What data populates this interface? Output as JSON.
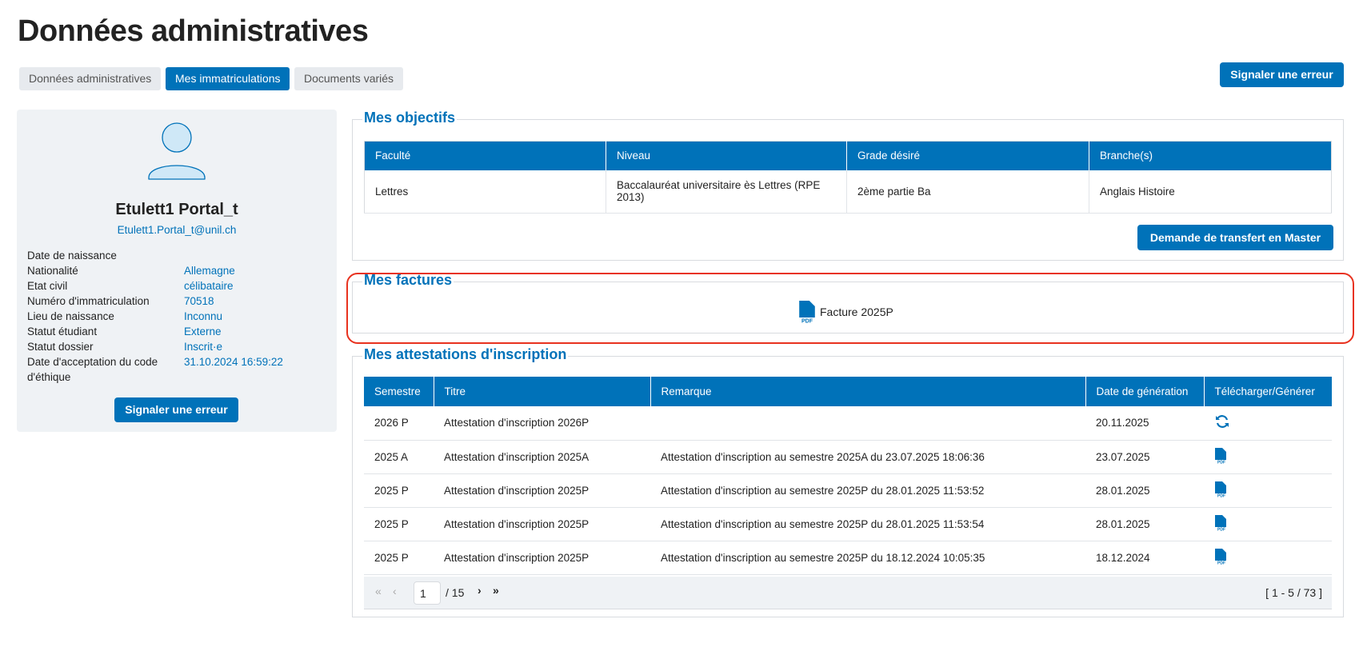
{
  "page_title": "Données administratives",
  "tabs": [
    {
      "label": "Données administratives",
      "active": false
    },
    {
      "label": "Mes immatriculations",
      "active": true
    },
    {
      "label": "Documents variés",
      "active": false
    }
  ],
  "report_error_label": "Signaler une erreur",
  "profile": {
    "name": "Etulett1 Portal_t",
    "email": "Etulett1.Portal_t@unil.ch",
    "fields": [
      {
        "label": "Date de naissance",
        "value": ""
      },
      {
        "label": "Nationalité",
        "value": "Allemagne"
      },
      {
        "label": "Etat civil",
        "value": "célibataire"
      },
      {
        "label": "Numéro d'immatriculation",
        "value": "70518"
      },
      {
        "label": "Lieu de naissance",
        "value": "Inconnu"
      },
      {
        "label": "Statut étudiant",
        "value": "Externe"
      },
      {
        "label": "Statut dossier",
        "value": "Inscrit·e"
      },
      {
        "label": "Date d'acceptation du code d'éthique",
        "value": "31.10.2024 16:59:22"
      }
    ],
    "report_error_label": "Signaler une erreur"
  },
  "objectifs": {
    "title": "Mes objectifs",
    "columns": [
      "Faculté",
      "Niveau",
      "Grade désiré",
      "Branche(s)"
    ],
    "rows": [
      [
        "Lettres",
        "Baccalauréat universitaire ès Lettres (RPE 2013)",
        "2ème partie Ba",
        "Anglais Histoire"
      ]
    ],
    "transfer_label": "Demande de transfert en Master"
  },
  "factures": {
    "title": "Mes factures",
    "items": [
      {
        "label": "Facture 2025P",
        "icon": "pdf-icon"
      }
    ]
  },
  "attestations": {
    "title": "Mes attestations d'inscription",
    "columns": [
      "Semestre",
      "Titre",
      "Remarque",
      "Date de génération",
      "Télécharger/Générer"
    ],
    "rows": [
      {
        "semestre": "2026 P",
        "titre": "Attestation d'inscription 2026P",
        "remarque": "",
        "date": "20.11.2025",
        "action": "refresh-icon"
      },
      {
        "semestre": "2025 A",
        "titre": "Attestation d'inscription 2025A",
        "remarque": "Attestation d'inscription au semestre 2025A du 23.07.2025 18:06:36",
        "date": "23.07.2025",
        "action": "pdf-icon"
      },
      {
        "semestre": "2025 P",
        "titre": "Attestation d'inscription 2025P",
        "remarque": "Attestation d'inscription au semestre 2025P du 28.01.2025 11:53:52",
        "date": "28.01.2025",
        "action": "pdf-icon"
      },
      {
        "semestre": "2025 P",
        "titre": "Attestation d'inscription 2025P",
        "remarque": "Attestation d'inscription au semestre 2025P du 28.01.2025 11:53:54",
        "date": "28.01.2025",
        "action": "pdf-icon"
      },
      {
        "semestre": "2025 P",
        "titre": "Attestation d'inscription 2025P",
        "remarque": "Attestation d'inscription au semestre 2025P du 18.12.2024 10:05:35",
        "date": "18.12.2024",
        "action": "pdf-icon"
      }
    ],
    "pager": {
      "page": "1",
      "total_pages": "/ 15",
      "range": "[ 1 - 5 / 73 ]"
    }
  },
  "colors": {
    "accent": "#0072b9",
    "highlight": "#e8321f",
    "panel": "#eff2f5"
  }
}
